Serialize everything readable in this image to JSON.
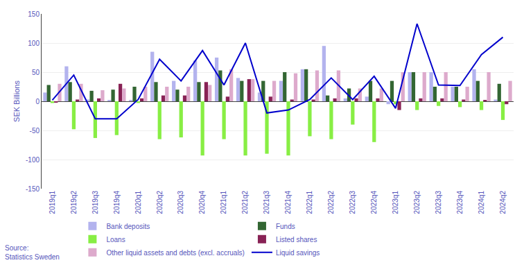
{
  "chart_data": {
    "type": "bar",
    "ylabel": "SEK Billions",
    "annotations": [
      "Source:\nStatistics Sweden"
    ],
    "categories": [
      "2019q1",
      "2019q2",
      "2019q3",
      "2019q4",
      "2020q1",
      "2020q2",
      "2020q3",
      "2020q4",
      "2021q1",
      "2021q2",
      "2021q3",
      "2021q4",
      "2022q1",
      "2022q2",
      "2022q3",
      "2022q4",
      "2023q1",
      "2023q2",
      "2023q3",
      "2023q4",
      "2024q1",
      "2024q2"
    ],
    "series": [
      {
        "name": "Bank deposits",
        "color": "#b3b3ee",
        "values": [
          15,
          60,
          3,
          2,
          2,
          85,
          35,
          70,
          75,
          40,
          15,
          35,
          55,
          95,
          5,
          8,
          -5,
          50,
          50,
          25,
          55,
          3
        ]
      },
      {
        "name": "Funds",
        "color": "#336633",
        "values": [
          28,
          33,
          18,
          20,
          25,
          33,
          20,
          33,
          53,
          35,
          35,
          50,
          55,
          10,
          22,
          35,
          35,
          50,
          25,
          25,
          35,
          30
        ]
      },
      {
        "name": "Loans",
        "color": "#88ee44",
        "values": [
          -3,
          -48,
          -63,
          -58,
          -3,
          -65,
          -62,
          -93,
          -65,
          -93,
          -90,
          -93,
          -60,
          -65,
          -40,
          -70,
          -5,
          -15,
          -8,
          -10,
          -15,
          -32
        ]
      },
      {
        "name": "Listed shares",
        "color": "#882255",
        "values": [
          -2,
          3,
          5,
          30,
          5,
          10,
          10,
          33,
          8,
          38,
          8,
          3,
          3,
          5,
          5,
          5,
          -15,
          5,
          5,
          3,
          2,
          -5
        ]
      },
      {
        "name": "Other liquid assets and debts (excl. accruals)",
        "color": "#ddaacc",
        "values": [
          30,
          30,
          19,
          22,
          25,
          25,
          25,
          28,
          55,
          38,
          35,
          48,
          53,
          53,
          22,
          22,
          50,
          50,
          50,
          25,
          50,
          35
        ]
      },
      {
        "name": "Liquid savings",
        "type": "line",
        "color": "#0000cc",
        "values": [
          2,
          45,
          -30,
          -30,
          3,
          72,
          35,
          87,
          28,
          100,
          -20,
          -15,
          3,
          40,
          3,
          43,
          -12,
          133,
          28,
          27,
          80,
          110
        ]
      }
    ],
    "ylim": [
      -150,
      150
    ],
    "yticks": [
      -150,
      -100,
      -50,
      0,
      50,
      100,
      150
    ],
    "grid": true,
    "legend": "bottom"
  }
}
